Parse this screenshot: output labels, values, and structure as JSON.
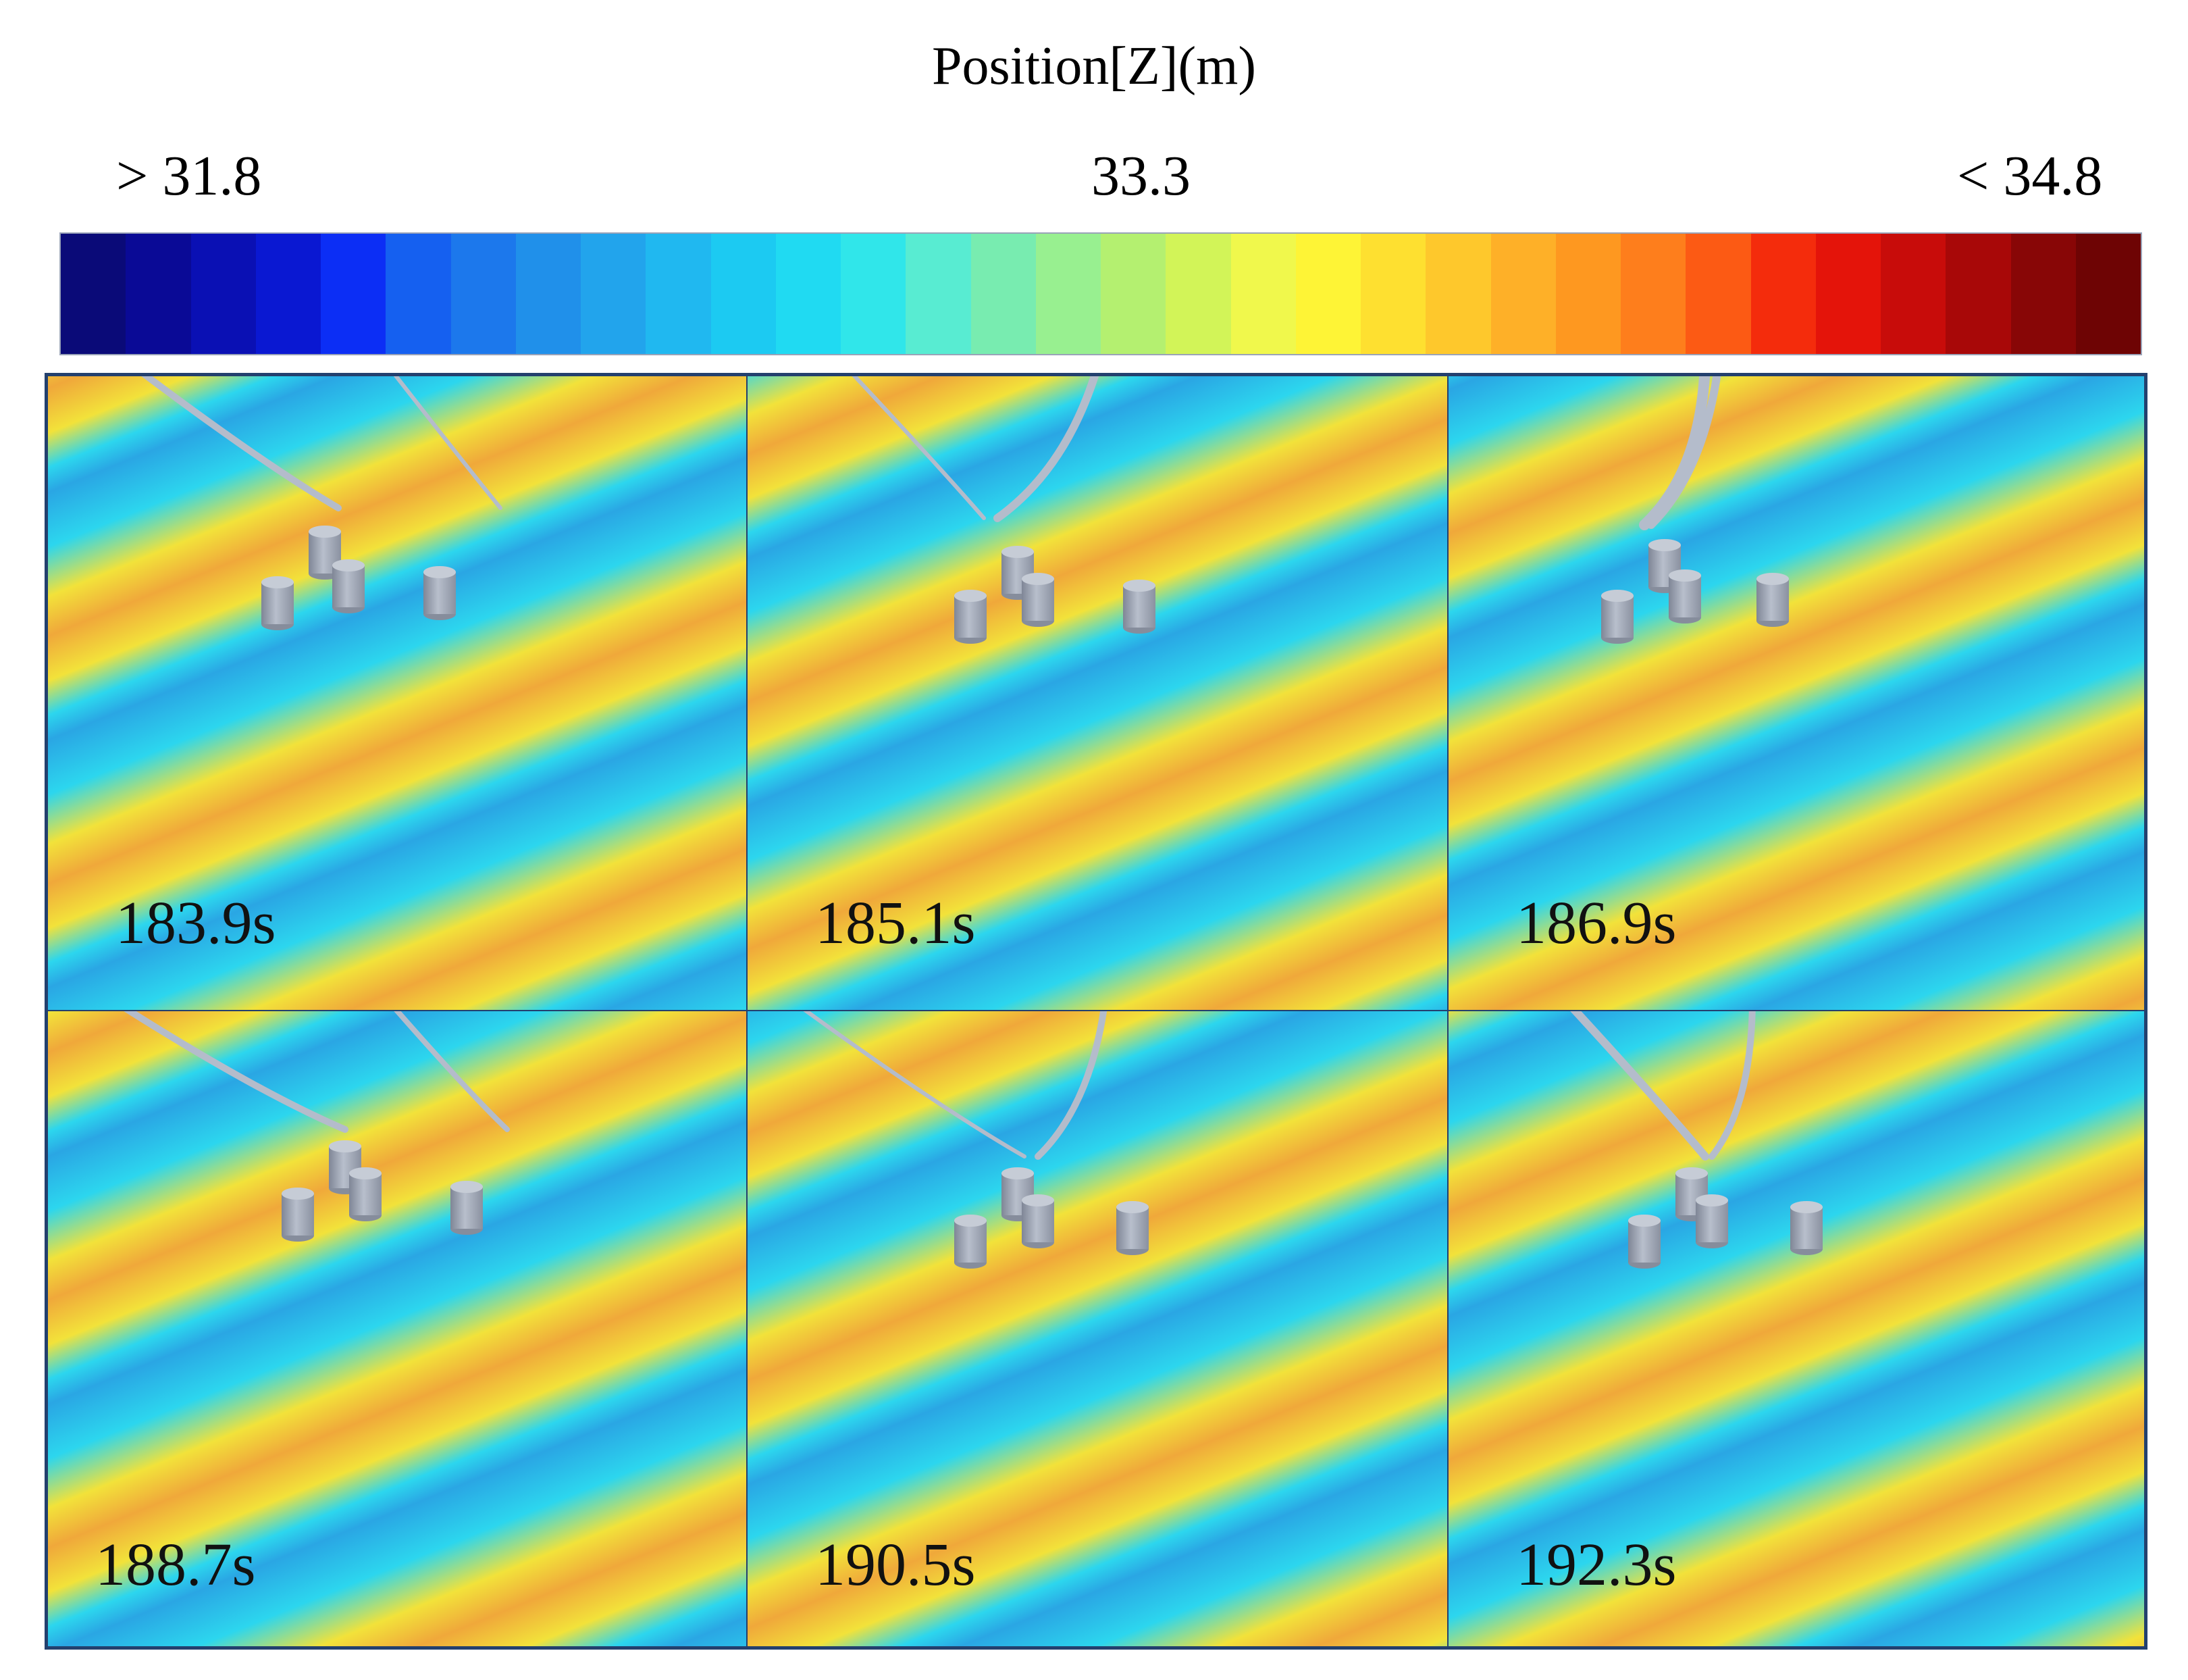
{
  "colorbar": {
    "title": "Position[Z](m)",
    "min_label": "> 31.8",
    "mid_label": "33.3",
    "max_label": "< 34.8",
    "min": 31.8,
    "mid": 33.3,
    "max": 34.8,
    "colors": [
      "#0a0a78",
      "#0a0a96",
      "#0a10b4",
      "#0a18d2",
      "#0c2ef5",
      "#1560f0",
      "#1c78ec",
      "#2090ea",
      "#22a4ec",
      "#20b8f0",
      "#1ccaf2",
      "#20daf2",
      "#30e6ea",
      "#58ecd2",
      "#78ecb0",
      "#98f090",
      "#b4f070",
      "#d2f458",
      "#f0f84c",
      "#fef436",
      "#fee030",
      "#fec82c",
      "#feb028",
      "#fe9820",
      "#fe7e1c",
      "#fc5a14",
      "#f42c0c",
      "#e4140a",
      "#c80c0a",
      "#a80808",
      "#880606",
      "#6e0404"
    ]
  },
  "panels": [
    {
      "time": "183.9s"
    },
    {
      "time": "185.1s"
    },
    {
      "time": "186.9s"
    },
    {
      "time": "188.7s"
    },
    {
      "time": "190.5s"
    },
    {
      "time": "192.3s"
    }
  ],
  "colors": {
    "wave_blue": "#2aa6e4",
    "wave_cyan": "#2cd6ee",
    "wave_yellow": "#f2e23a",
    "wave_orange": "#f0a83a",
    "cylinder": "#a4abb8",
    "mooring": "#b4bccb",
    "frame": "#23406e"
  }
}
